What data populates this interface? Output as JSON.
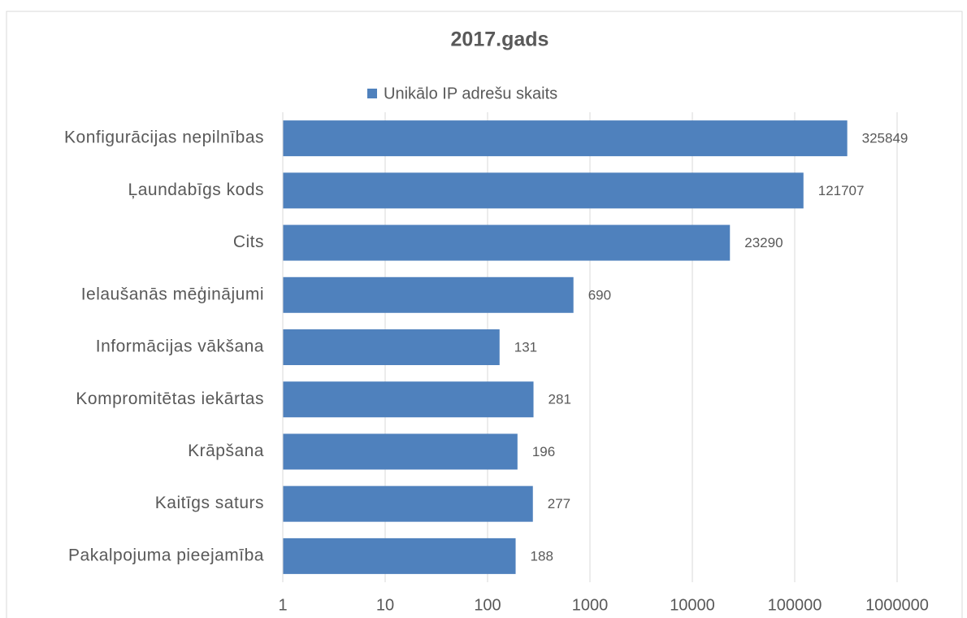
{
  "chart_data": {
    "type": "bar",
    "orientation": "horizontal",
    "title": "2017.gads",
    "categories": [
      "Konfigurācijas nepilnības",
      "Ļaundabīgs kods",
      "Cits",
      "Ielaušanās mēģinājumi",
      "Informācijas vākšana",
      "Kompromitētas iekārtas",
      "Krāpšana",
      "Kaitīgs saturs",
      "Pakalpojuma pieejamība"
    ],
    "series": [
      {
        "name": "Unikālo IP adrešu skaits",
        "color": "#4f81bd",
        "values": [
          325849,
          121707,
          23290,
          690,
          131,
          281,
          196,
          277,
          188
        ]
      }
    ],
    "xlim": [
      1,
      1000000
    ],
    "xticks": [
      1,
      10,
      100,
      1000,
      10000,
      100000,
      1000000
    ],
    "log_scale": true,
    "grid": true,
    "legend": "top"
  }
}
